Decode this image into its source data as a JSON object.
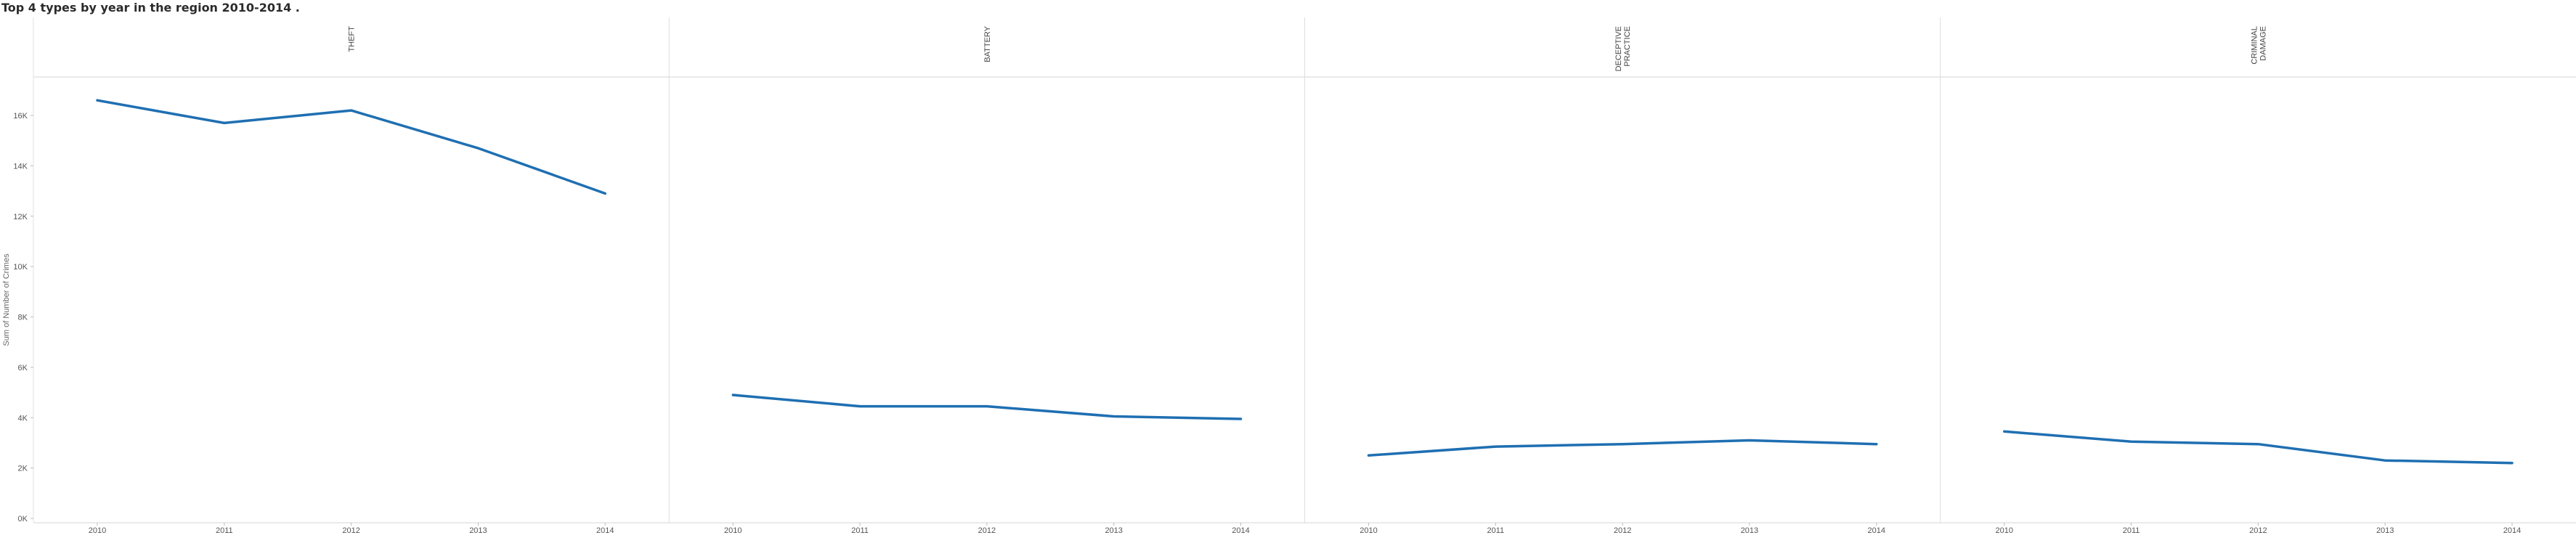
{
  "title": "Top 4 types by year in the region 2010-2014 .",
  "chart_data": {
    "type": "line",
    "title": "Top 4 types by year in the region 2010-2014 .",
    "ylabel": "Sum of Number of Crimes",
    "xlabel": "",
    "categories": [
      "2010",
      "2011",
      "2012",
      "2013",
      "2014"
    ],
    "ylim": [
      0,
      17500
    ],
    "y_ticks": [
      0,
      2000,
      4000,
      6000,
      8000,
      10000,
      12000,
      14000,
      16000
    ],
    "y_tick_labels": [
      "0K",
      "2K",
      "4K",
      "6K",
      "8K",
      "10K",
      "12K",
      "14K",
      "16K"
    ],
    "grid": false,
    "line_color": "#1f6fb2",
    "panels": [
      {
        "header": [
          "THEFT"
        ],
        "values": [
          16600,
          15700,
          16200,
          14700,
          12900
        ]
      },
      {
        "header": [
          "BATTERY"
        ],
        "values": [
          4900,
          4450,
          4450,
          4050,
          3950
        ]
      },
      {
        "header": [
          "DECEPTIVE",
          "PRACTICE"
        ],
        "values": [
          2500,
          2850,
          2950,
          3100,
          2950
        ]
      },
      {
        "header": [
          "CRIMINAL",
          "DAMAGE"
        ],
        "values": [
          3450,
          3050,
          2950,
          2300,
          2200
        ]
      }
    ]
  }
}
